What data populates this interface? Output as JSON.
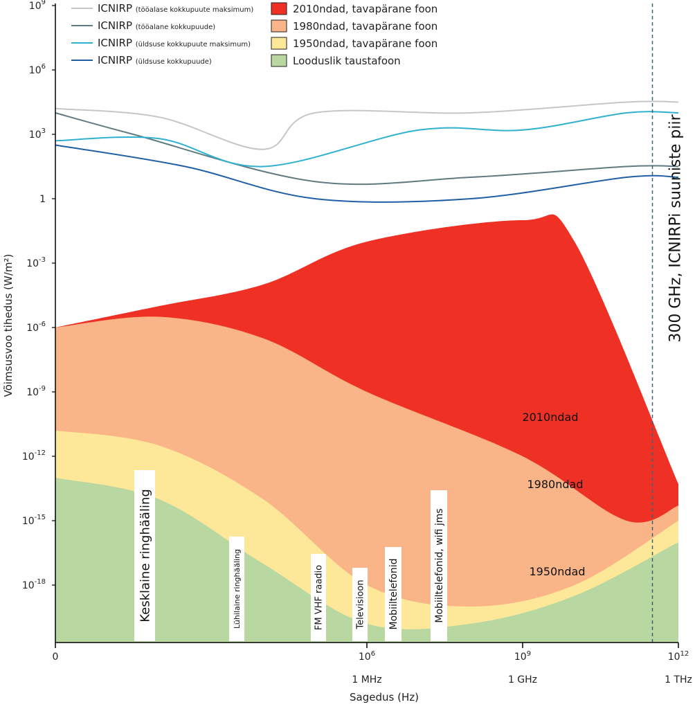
{
  "chart_data": {
    "type": "area",
    "xlabel": "Sagedus (Hz)",
    "ylabel": "Võimsusvoo tihedus (W/m²)",
    "x_scale": "log",
    "y_scale": "log",
    "x_axis": {
      "ticks": [
        {
          "exp": 0,
          "value": 1,
          "label": "0",
          "unit_label": ""
        },
        {
          "exp": 6,
          "value": 1000000,
          "label": "10",
          "sup": "6",
          "unit_label": "1 MHz"
        },
        {
          "exp": 9,
          "value": 1000000000,
          "label": "10",
          "sup": "9",
          "unit_label": "1 GHz"
        },
        {
          "exp": 12,
          "value": 1000000000000,
          "label": "10",
          "sup": "12",
          "unit_label": "1 THz"
        }
      ]
    },
    "y_axis": {
      "ticks": [
        {
          "exp": 9,
          "label": "10",
          "sup": "9"
        },
        {
          "exp": 6,
          "label": "10",
          "sup": "6"
        },
        {
          "exp": 3,
          "label": "10",
          "sup": "3"
        },
        {
          "exp": 0,
          "label": "1",
          "sup": ""
        },
        {
          "exp": -3,
          "label": "10",
          "sup": "-3"
        },
        {
          "exp": -6,
          "label": "10",
          "sup": "-6"
        },
        {
          "exp": -9,
          "label": "10",
          "sup": "-9"
        },
        {
          "exp": -12,
          "label": "10",
          "sup": "-12"
        },
        {
          "exp": -15,
          "label": "10",
          "sup": "-15"
        },
        {
          "exp": -18,
          "label": "10",
          "sup": "-18"
        }
      ]
    },
    "x_exp_range": [
      0,
      12
    ],
    "y_exp_range": [
      -21,
      9
    ],
    "legend_lines": [
      {
        "name": "ICNIRP",
        "detail": "(tööalase kokkupuute maksimum)",
        "color": "#c4c7c9"
      },
      {
        "name": "ICNIRP",
        "detail": "(tööalane kokkupuude)",
        "color": "#5f7a80"
      },
      {
        "name": "ICNIRP",
        "detail": "(üldsuse kokkupuute maksimum)",
        "color": "#2eb0cf"
      },
      {
        "name": "ICNIRP",
        "detail": "(üldsuse kokkupuude)",
        "color": "#1f5fa6"
      }
    ],
    "legend_areas": [
      {
        "name": "2010ndad, tavapärane foon",
        "color": "#ee3124"
      },
      {
        "name": "1980ndad, tavapärane foon",
        "color": "#f9b487"
      },
      {
        "name": "1950ndad, tavapärane foon",
        "color": "#fde89a"
      },
      {
        "name": "Looduslik taustafoon",
        "color": "#b9d7a1"
      }
    ],
    "series_lines": [
      {
        "color": "#c4c7c9",
        "points": [
          [
            0,
            4.2
          ],
          [
            2,
            3.8
          ],
          [
            4,
            2.3
          ],
          [
            5,
            4.0
          ],
          [
            8,
            4.0
          ],
          [
            11,
            4.5
          ],
          [
            12,
            4.5
          ]
        ]
      },
      {
        "color": "#5f7a80",
        "points": [
          [
            0,
            4.0
          ],
          [
            1.5,
            3.0
          ],
          [
            5,
            0.8
          ],
          [
            8,
            1.0
          ],
          [
            11,
            1.5
          ],
          [
            12,
            1.5
          ]
        ]
      },
      {
        "color": "#2eb0cf",
        "points": [
          [
            0,
            2.7
          ],
          [
            2,
            2.8
          ],
          [
            4,
            1.5
          ],
          [
            7,
            3.2
          ],
          [
            9,
            3.2
          ],
          [
            11,
            4.0
          ],
          [
            12,
            4.0
          ]
        ]
      },
      {
        "color": "#1f5fa6",
        "points": [
          [
            0,
            2.5
          ],
          [
            2.5,
            1.5
          ],
          [
            5,
            0
          ],
          [
            8,
            0
          ],
          [
            11,
            1.0
          ],
          [
            12,
            1.0
          ]
        ]
      }
    ],
    "series_areas": [
      {
        "name": "2010ndad",
        "color": "#ee3124",
        "points": [
          [
            0,
            -6
          ],
          [
            2,
            -5
          ],
          [
            4,
            -4
          ],
          [
            6,
            -2
          ],
          [
            9,
            -1
          ],
          [
            10,
            -2
          ],
          [
            12,
            -13.3
          ]
        ]
      },
      {
        "name": "1980ndad",
        "color": "#f9b487",
        "points": [
          [
            0,
            -6
          ],
          [
            2,
            -5.5
          ],
          [
            4,
            -6.5
          ],
          [
            6,
            -9
          ],
          [
            9,
            -12
          ],
          [
            11,
            -15
          ],
          [
            12,
            -14.3
          ]
        ]
      },
      {
        "name": "1950ndad",
        "color": "#fde89a",
        "points": [
          [
            0,
            -10.8
          ],
          [
            2,
            -11.5
          ],
          [
            4,
            -14
          ],
          [
            6,
            -18
          ],
          [
            8,
            -19
          ],
          [
            10,
            -18
          ],
          [
            12,
            -15
          ]
        ]
      },
      {
        "name": "Looduslik taustafoon",
        "color": "#b9d7a1",
        "points": [
          [
            0,
            -13
          ],
          [
            2,
            -14
          ],
          [
            4,
            -17
          ],
          [
            6,
            -19.8
          ],
          [
            8,
            -19.8
          ],
          [
            10,
            -18.5
          ],
          [
            12,
            -16
          ]
        ]
      }
    ],
    "area_labels": [
      {
        "text": "2010ndad"
      },
      {
        "text": "1980ndad"
      },
      {
        "text": "1950ndad"
      }
    ],
    "band_labels": [
      {
        "text": "Kesklaine ringhääling"
      },
      {
        "text": "Lühilaine ringhääling"
      },
      {
        "text": "FM VHF raadio"
      },
      {
        "text": "Televisioon"
      },
      {
        "text": "Mobiiltelefonid"
      },
      {
        "text": "Mobiiltelefonid, wifi jms"
      }
    ],
    "limit_line": {
      "exp": 11.5,
      "label": "300 GHz, ICNIRPi suuniste piir",
      "color": "#3d6373"
    }
  }
}
